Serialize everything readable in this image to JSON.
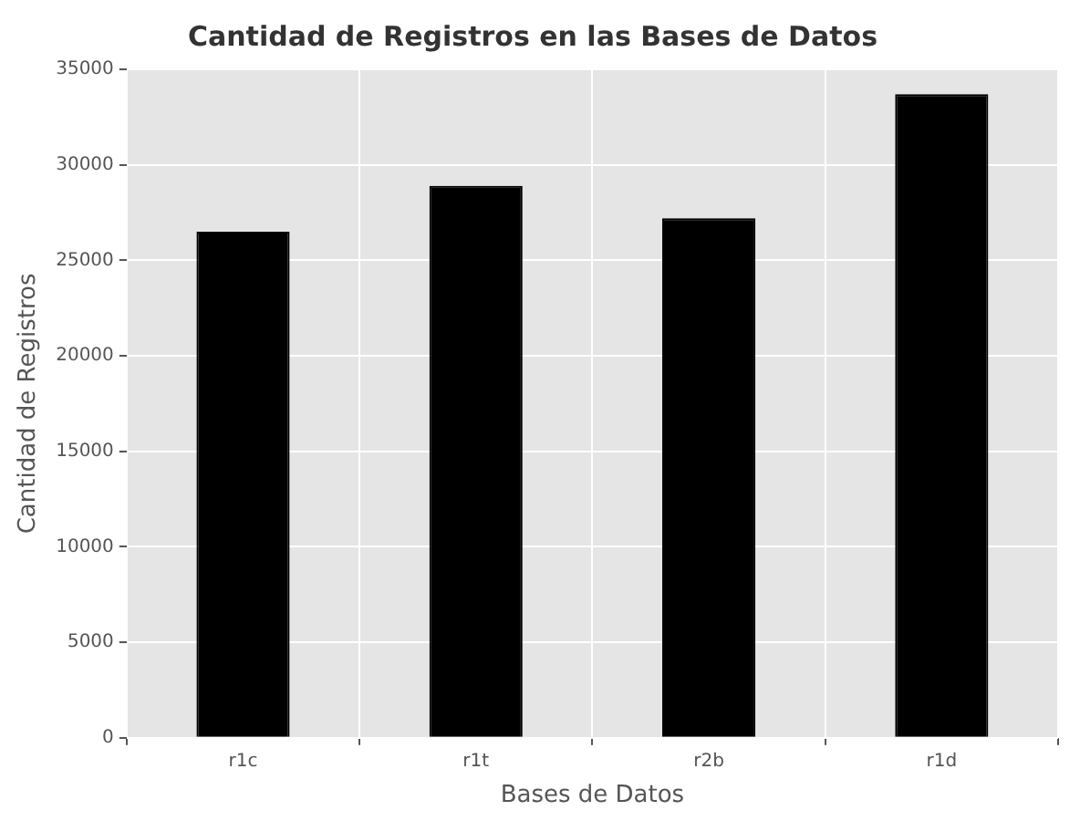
{
  "chart_data": {
    "type": "bar",
    "title": "Cantidad de Registros en las Bases de Datos",
    "xlabel": "Bases de Datos",
    "ylabel": "Cantidad de Registros",
    "categories": [
      "r1c",
      "r1t",
      "r2b",
      "r1d"
    ],
    "values": [
      26500,
      28900,
      27200,
      33700
    ],
    "color": "#000000",
    "ylim": [
      0,
      35000
    ],
    "yticks": [
      0,
      5000,
      10000,
      15000,
      20000,
      25000,
      30000,
      35000
    ],
    "grid": true
  }
}
